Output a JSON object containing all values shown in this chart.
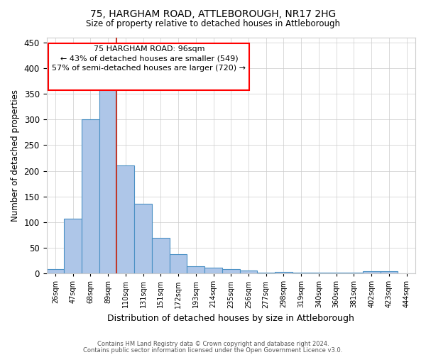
{
  "title1": "75, HARGHAM ROAD, ATTLEBOROUGH, NR17 2HG",
  "title2": "Size of property relative to detached houses in Attleborough",
  "xlabel": "Distribution of detached houses by size in Attleborough",
  "ylabel": "Number of detached properties",
  "footnote1": "Contains HM Land Registry data © Crown copyright and database right 2024.",
  "footnote2": "Contains public sector information licensed under the Open Government Licence v3.0.",
  "annotation_line1": "75 HARGHAM ROAD: 96sqm",
  "annotation_line2": "← 43% of detached houses are smaller (549)",
  "annotation_line3": "57% of semi-detached houses are larger (720) →",
  "bar_labels": [
    "26sqm",
    "47sqm",
    "68sqm",
    "89sqm",
    "110sqm",
    "131sqm",
    "151sqm",
    "172sqm",
    "193sqm",
    "214sqm",
    "235sqm",
    "256sqm",
    "277sqm",
    "298sqm",
    "319sqm",
    "340sqm",
    "360sqm",
    "381sqm",
    "402sqm",
    "423sqm",
    "444sqm"
  ],
  "bar_values": [
    9,
    107,
    300,
    360,
    211,
    136,
    70,
    38,
    14,
    11,
    9,
    6,
    2,
    3,
    1,
    1,
    1,
    1,
    4,
    4,
    0
  ],
  "bar_color": "#aec6e8",
  "bar_edge_color": "#4a90c4",
  "vline_color": "#c0392b",
  "ylim": [
    0,
    460
  ],
  "yticks": [
    0,
    50,
    100,
    150,
    200,
    250,
    300,
    350,
    400,
    450
  ],
  "background_color": "#ffffff",
  "grid_color": "#cccccc"
}
